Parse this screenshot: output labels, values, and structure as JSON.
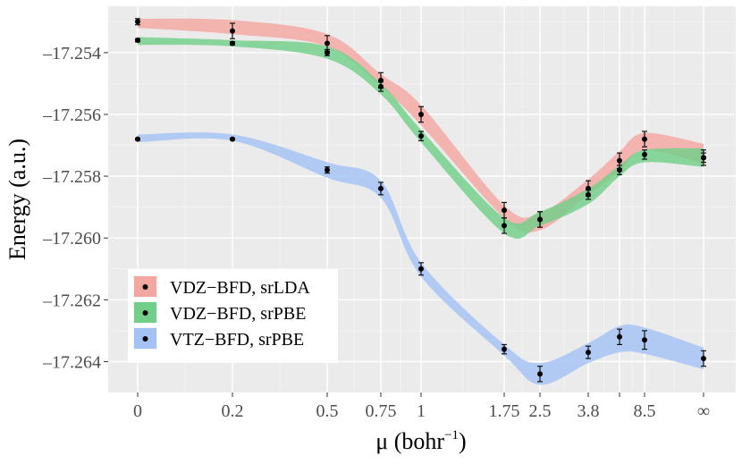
{
  "chart_data": {
    "type": "scatter",
    "title": "",
    "xlabel": "μ (bohr",
    "xlabel_sup": "−1",
    "xlabel_close": ")",
    "ylabel": "Energy (a.u.)",
    "x_categories": [
      "0",
      "0.2",
      "0.5",
      "0.75",
      "1",
      "1.75",
      "2.5",
      "3.8",
      "",
      "8.5",
      "∞"
    ],
    "x_positions": [
      0,
      0.2,
      0.5,
      0.75,
      1.0,
      1.75,
      2.5,
      3.8,
      5.0,
      8.5,
      100
    ],
    "y_ticks": [
      -17.264,
      -17.262,
      -17.26,
      -17.258,
      -17.256,
      -17.254
    ],
    "y_tick_labels": [
      "–17.264",
      "–17.262",
      "–17.260",
      "–17.258",
      "–17.256",
      "–17.254"
    ],
    "ylim": [
      -17.265,
      -17.2525
    ],
    "legend_position": "bottom-left",
    "series": [
      {
        "name": "VDZ−BFD, srLDA",
        "color": "#f4a6a1",
        "points": [
          {
            "x": "0",
            "y": -17.253,
            "err": 0.0001
          },
          {
            "x": "0.2",
            "y": -17.2533,
            "err": 0.00025
          },
          {
            "x": "0.5",
            "y": -17.2537,
            "err": 0.00025
          },
          {
            "x": "0.75",
            "y": -17.2549,
            "err": 0.00025
          },
          {
            "x": "1",
            "y": -17.256,
            "err": 0.00025
          },
          {
            "x": "1.75",
            "y": -17.2591,
            "err": 0.00025
          },
          {
            "x": "2.5",
            "y": -17.2594,
            "err": 0.00025
          },
          {
            "x": "3.8",
            "y": -17.2584,
            "err": 0.00025
          },
          {
            "x": "",
            "y": -17.2575,
            "err": 0.00025
          },
          {
            "x": "8.5",
            "y": -17.2568,
            "err": 0.00025
          },
          {
            "x": "∞",
            "y": -17.2574,
            "err": 0.00025
          }
        ]
      },
      {
        "name": "VDZ−BFD, srPBE",
        "color": "#71cf8a",
        "points": [
          {
            "x": "0",
            "y": -17.2536,
            "err": 5e-05
          },
          {
            "x": "0.2",
            "y": -17.2537,
            "err": 5e-05
          },
          {
            "x": "0.5",
            "y": -17.254,
            "err": 0.0001
          },
          {
            "x": "0.75",
            "y": -17.2551,
            "err": 0.00015
          },
          {
            "x": "1",
            "y": -17.2567,
            "err": 0.00015
          },
          {
            "x": "1.75",
            "y": -17.2596,
            "err": 0.00025
          },
          {
            "x": "2.5",
            "y": -17.2594,
            "err": 0.00025
          },
          {
            "x": "3.8",
            "y": -17.2586,
            "err": 0.00015
          },
          {
            "x": "",
            "y": -17.2578,
            "err": 0.00015
          },
          {
            "x": "8.5",
            "y": -17.2573,
            "err": 0.00015
          },
          {
            "x": "∞",
            "y": -17.2574,
            "err": 0.00015
          }
        ]
      },
      {
        "name": "VTZ−BFD, srPBE",
        "color": "#a4c2f4",
        "points": [
          {
            "x": "0",
            "y": -17.2568,
            "err": 3e-05
          },
          {
            "x": "0.2",
            "y": -17.2568,
            "err": 3e-05
          },
          {
            "x": "0.5",
            "y": -17.2578,
            "err": 0.0001
          },
          {
            "x": "0.75",
            "y": -17.2584,
            "err": 0.0002
          },
          {
            "x": "1",
            "y": -17.261,
            "err": 0.0002
          },
          {
            "x": "1.75",
            "y": -17.2636,
            "err": 0.00015
          },
          {
            "x": "2.5",
            "y": -17.2644,
            "err": 0.00025
          },
          {
            "x": "3.8",
            "y": -17.2637,
            "err": 0.0002
          },
          {
            "x": "",
            "y": -17.2632,
            "err": 0.00025
          },
          {
            "x": "8.5",
            "y": -17.2633,
            "err": 0.0003
          },
          {
            "x": "∞",
            "y": -17.2639,
            "err": 0.00025
          }
        ]
      }
    ],
    "ribbons": [
      {
        "series": "VDZ−BFD, srLDA",
        "upper": [
          -17.2529,
          -17.25295,
          -17.2534,
          -17.2547,
          -17.2557,
          -17.25895,
          -17.2592,
          -17.2581,
          -17.2572,
          -17.2566,
          -17.25695
        ],
        "lower": [
          -17.2532,
          -17.2534,
          -17.2538,
          -17.2551,
          -17.25635,
          -17.25935,
          -17.25975,
          -17.2586,
          -17.25785,
          -17.25715,
          -17.2576
        ]
      },
      {
        "series": "VDZ−BFD, srPBE",
        "upper": [
          -17.2535,
          -17.2536,
          -17.2538,
          -17.255,
          -17.2565,
          -17.25935,
          -17.25915,
          -17.2584,
          -17.25765,
          -17.25715,
          -17.2571
        ],
        "lower": [
          -17.25375,
          -17.2538,
          -17.2542,
          -17.25535,
          -17.2569,
          -17.25985,
          -17.2596,
          -17.2589,
          -17.258,
          -17.25755,
          -17.2577
        ]
      },
      {
        "series": "VTZ−BFD, srPBE",
        "upper": [
          -17.25665,
          -17.25665,
          -17.25755,
          -17.25815,
          -17.2608,
          -17.26345,
          -17.26405,
          -17.2634,
          -17.26285,
          -17.2629,
          -17.26355
        ],
        "lower": [
          -17.2569,
          -17.25685,
          -17.25805,
          -17.2587,
          -17.26125,
          -17.2638,
          -17.26475,
          -17.26405,
          -17.2637,
          -17.26375,
          -17.26425
        ]
      }
    ]
  }
}
